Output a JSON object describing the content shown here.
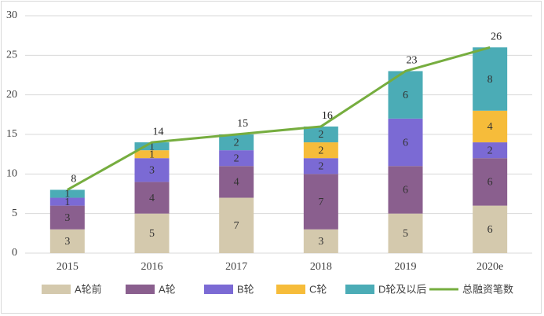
{
  "chart_data": {
    "type": "bar",
    "stacked": true,
    "categories": [
      "2015",
      "2016",
      "2017",
      "2018",
      "2019",
      "2020e"
    ],
    "ylim": [
      0,
      30
    ],
    "yticks": [
      0,
      5,
      10,
      15,
      20,
      25,
      30
    ],
    "grid": true,
    "legend_position": "bottom",
    "series": [
      {
        "name": "A轮前",
        "color": "#d4c9ad",
        "values": [
          3,
          5,
          7,
          3,
          5,
          6
        ]
      },
      {
        "name": "A轮",
        "color": "#8a5f8e",
        "values": [
          3,
          4,
          4,
          7,
          6,
          6
        ]
      },
      {
        "name": "B轮",
        "color": "#7b6ad4",
        "values": [
          1,
          3,
          2,
          2,
          6,
          2
        ]
      },
      {
        "name": "C轮",
        "color": "#f6bc3a",
        "values": [
          0,
          1,
          0,
          2,
          0,
          4
        ]
      },
      {
        "name": "D轮及以后",
        "color": "#4bacb6",
        "values": [
          1,
          1,
          2,
          2,
          6,
          8
        ]
      }
    ],
    "line": {
      "name": "总融资笔数",
      "color": "#76ad3f",
      "values": [
        8,
        14,
        15,
        16,
        23,
        26
      ]
    }
  }
}
